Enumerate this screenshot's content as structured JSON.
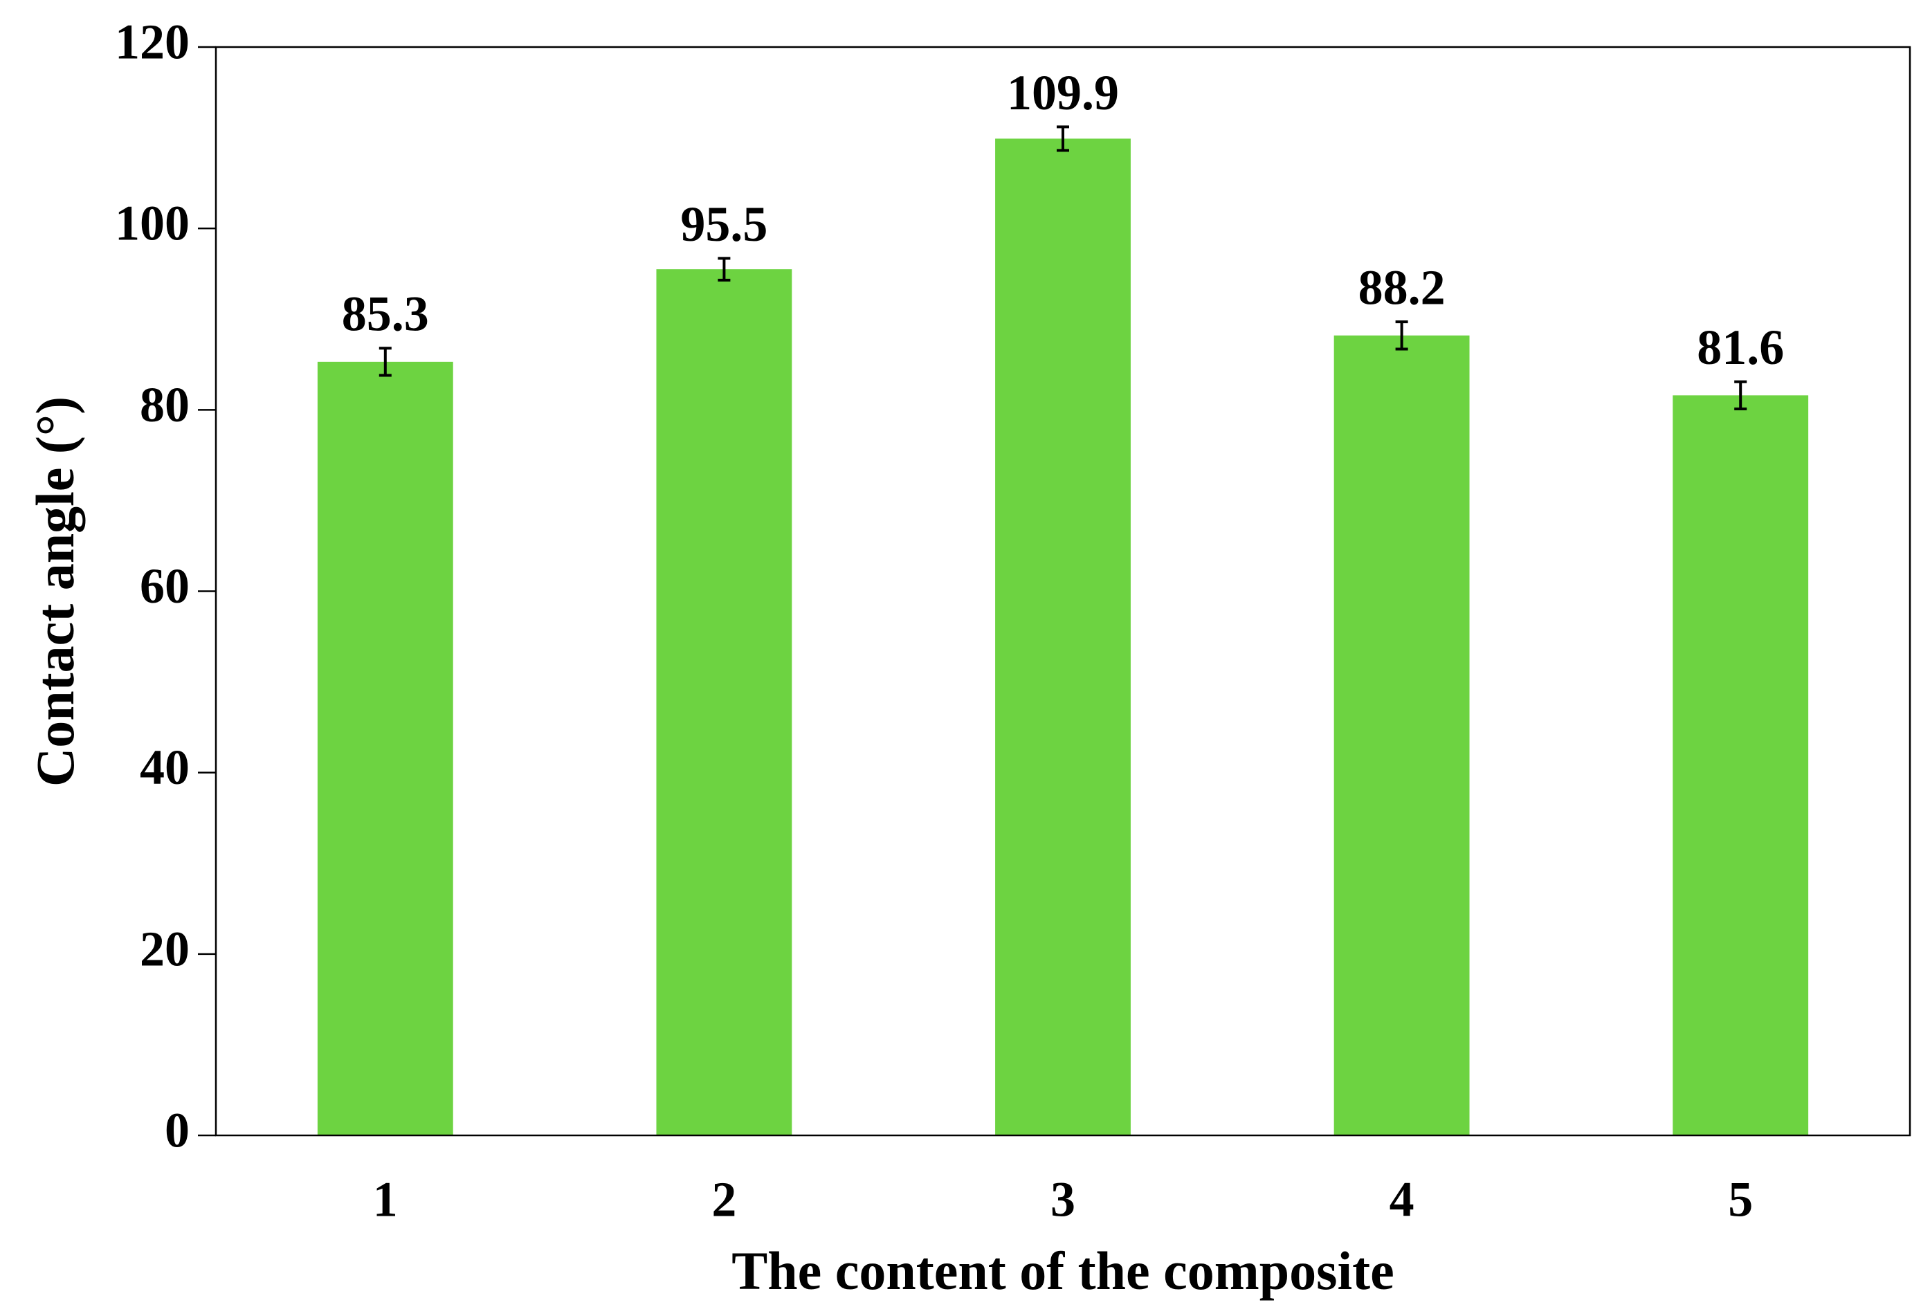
{
  "chart_data": {
    "type": "bar",
    "x_label": "The content of the composite",
    "y_label": "Contact angle (°)",
    "categories": [
      "1",
      "2",
      "3",
      "4",
      "5"
    ],
    "values": [
      85.3,
      95.5,
      109.9,
      88.2,
      81.6
    ],
    "errors": [
      1.5,
      1.2,
      1.3,
      1.5,
      1.5
    ],
    "color": "#6dd341",
    "ylim": [
      0,
      120
    ],
    "yticks": [
      0,
      20,
      40,
      60,
      80,
      100,
      120
    ],
    "grid": false
  }
}
